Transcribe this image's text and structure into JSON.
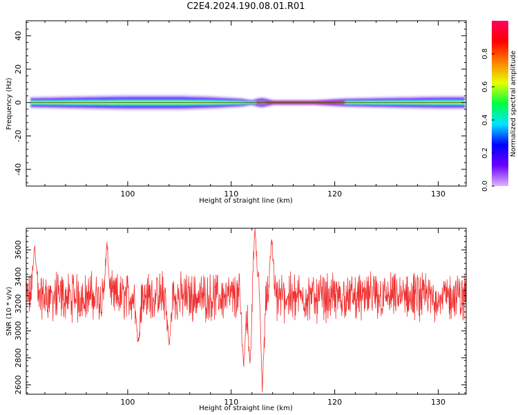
{
  "title": "C2E4.2024.190.08.01.R01",
  "chart_data": [
    {
      "type": "heatmap",
      "xlabel": "Height of straight line (km)",
      "ylabel": "Frequency (Hz)",
      "xlim": [
        90.2,
        132.7
      ],
      "ylim": [
        -50,
        49
      ],
      "x_ticks": [
        "100",
        "110",
        "120",
        "130"
      ],
      "y_ticks": [
        "-40",
        "-20",
        "0",
        "20",
        "40"
      ],
      "colorbar": {
        "label": "Normalized spectral amplitude",
        "range": [
          0.0,
          1.0
        ],
        "ticks": [
          "0.0",
          "0.2",
          "0.4",
          "0.6",
          "0.8"
        ],
        "colormap": [
          "#e0b3ff",
          "#6a00ff",
          "#0000ff",
          "#00e5ff",
          "#00ff40",
          "#e5ff00",
          "#ff8000",
          "#ff0000",
          "#ff0060"
        ]
      },
      "band": {
        "center_hz": 0,
        "half_width_hz": [
          [
            90.6,
            3
          ],
          [
            95,
            3.5
          ],
          [
            100,
            4
          ],
          [
            105,
            4
          ],
          [
            108,
            3.5
          ],
          [
            111,
            2.5
          ],
          [
            112,
            1.5
          ],
          [
            112.5,
            2.5
          ],
          [
            113,
            3
          ],
          [
            114,
            1.5
          ],
          [
            118,
            1.5
          ],
          [
            121,
            2.5
          ],
          [
            125,
            3
          ],
          [
            130,
            3.5
          ],
          [
            132.7,
            3.5
          ]
        ],
        "peak_region_km": [
          113,
          121
        ]
      }
    },
    {
      "type": "line",
      "xlabel": "Height of straight line (km)",
      "ylabel": "SNR (10 * v/v)",
      "xlim": [
        90.2,
        132.7
      ],
      "ylim": [
        2530,
        3760
      ],
      "x_ticks": [
        "100",
        "110",
        "120",
        "130"
      ],
      "y_ticks": [
        "2600",
        "2800",
        "3000",
        "3200",
        "3400",
        "3600"
      ],
      "series": [
        {
          "color": "#f03030",
          "baseline": 3250,
          "noise_amplitude": 130,
          "x_range": [
            90.2,
            132.7
          ],
          "samples": 1400,
          "features": [
            {
              "x": 111.2,
              "value": 2730
            },
            {
              "x": 111.8,
              "value": 2750
            },
            {
              "x": 112.3,
              "value": 3760
            },
            {
              "x": 112.8,
              "value": 3560
            },
            {
              "x": 113.0,
              "value": 2540
            },
            {
              "x": 113.9,
              "value": 3700
            },
            {
              "x": 98.0,
              "value": 3650
            },
            {
              "x": 91.0,
              "value": 3640
            },
            {
              "x": 101.0,
              "value": 2900
            },
            {
              "x": 104.0,
              "value": 2880
            }
          ]
        }
      ]
    }
  ]
}
